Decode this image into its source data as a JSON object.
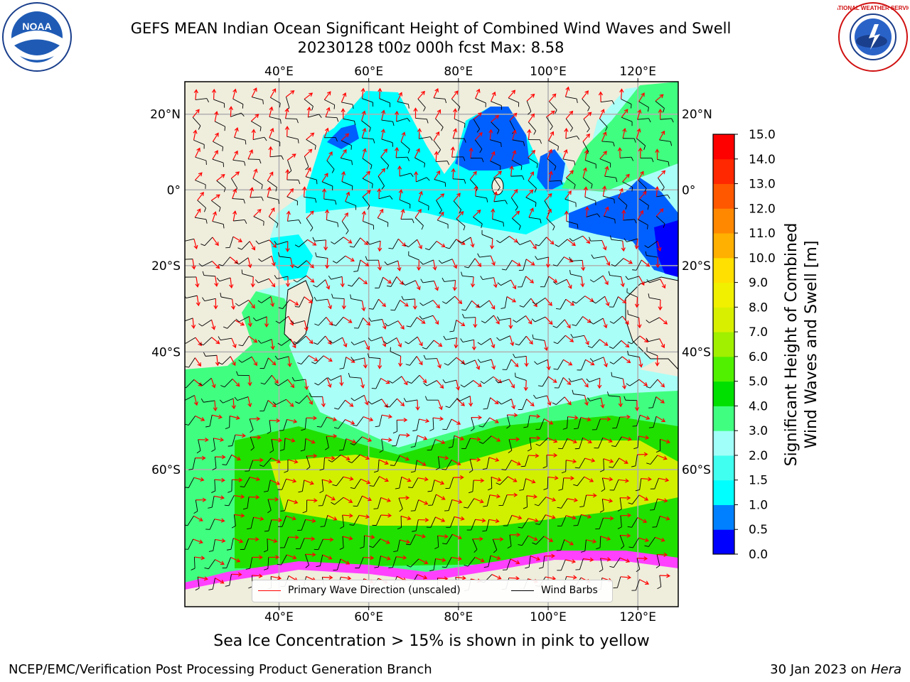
{
  "title": {
    "line1": "GEFS MEAN Indian Ocean Significant Height of Combined Wind Waves and Swell",
    "line2": "20230128 t00z 000h fcst   Max: 8.58"
  },
  "logos": {
    "left": {
      "icon": "noaa-logo",
      "text": "NOAA"
    },
    "right": {
      "icon": "nws-logo",
      "text": "NATIONAL WEATHER SERVICE"
    }
  },
  "map": {
    "lon_labels_top": [
      "40°E",
      "60°E",
      "80°E",
      "100°E",
      "120°E"
    ],
    "lon_labels_bottom": [
      "40°E",
      "60°E",
      "80°E",
      "100°E",
      "120°E"
    ],
    "lat_labels_left": [
      "20°N",
      "0°",
      "20°S",
      "40°S",
      "60°S"
    ],
    "lat_labels_right": [
      "20°N",
      "0°",
      "20°S",
      "40°S",
      "60°S"
    ],
    "lon_values": [
      40,
      60,
      80,
      100,
      120
    ],
    "lat_values": [
      20,
      0,
      -20,
      -40,
      -60
    ],
    "extent": {
      "lon_min": 19,
      "lon_max": 129,
      "lat_min": -74,
      "lat_max": 28
    },
    "land_color": "#efeddc",
    "ocean_colors": {
      "calm": "#a9fff7",
      "moderate": "#00ffff",
      "high": "#40ff80",
      "higher": "#20e000",
      "peak": "#d0f000",
      "low": "#0060ff",
      "very_low": "#0000ff",
      "ice": "#ff40ff"
    }
  },
  "legend": {
    "primary_wave": "Primary Wave Direction (unscaled)",
    "wind_barbs": "Wind Barbs",
    "primary_wave_color": "#ff0000",
    "wind_barbs_color": "#000000"
  },
  "colorbar": {
    "label_line1": "Significant Height of Combined",
    "label_line2": "Wind Waves and Swell [m]",
    "ticks": [
      "0.0",
      "0.5",
      "1.0",
      "1.5",
      "2.0",
      "3.0",
      "4.0",
      "5.0",
      "6.0",
      "7.0",
      "8.0",
      "9.0",
      "10.0",
      "11.0",
      "12.0",
      "13.0",
      "14.0",
      "15.0"
    ],
    "colors": [
      "#0000ff",
      "#0080ff",
      "#00ffff",
      "#40fff0",
      "#a0fff8",
      "#40ff80",
      "#00e000",
      "#50f000",
      "#a0f000",
      "#d8f000",
      "#f0f000",
      "#ffe000",
      "#ffb000",
      "#ff8800",
      "#ff5800",
      "#ff2800",
      "#ff0000"
    ]
  },
  "ice_note": "Sea Ice Concentration > 15% is shown in pink to yellow",
  "footer": {
    "left": "NCEP/EMC/Verification Post Processing Product Generation Branch",
    "right_date": "30 Jan 2023 on ",
    "right_machine": "Hera"
  }
}
